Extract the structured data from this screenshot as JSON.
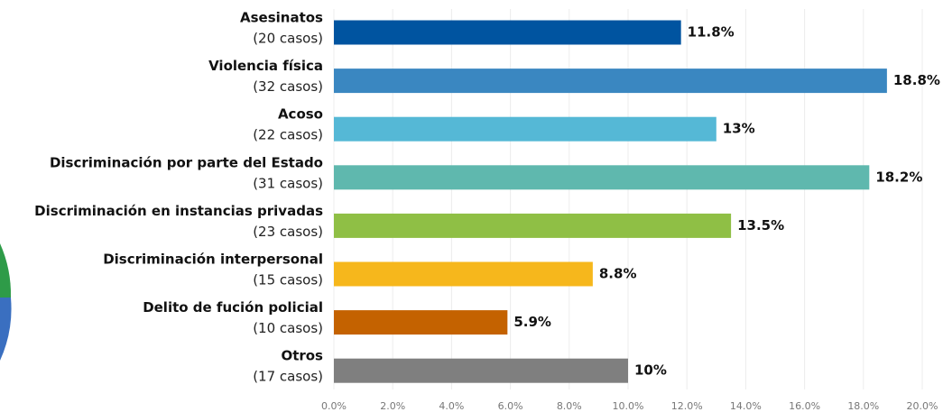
{
  "chart_data": {
    "type": "bar",
    "orientation": "horizontal",
    "categories": [
      "Asesinatos",
      "Violencia física",
      "Acoso",
      "Discriminación por parte del Estado",
      "Discriminación en instancias privadas",
      "Discriminación interpersonal",
      "Delito de fución policial",
      "Otros"
    ],
    "case_labels": [
      "(20 casos)",
      "(32 casos)",
      "(22 casos)",
      "(31 casos)",
      "(23 casos)",
      "(15 casos)",
      "(10 casos)",
      "(17 casos)"
    ],
    "values": [
      11.8,
      18.8,
      13,
      18.2,
      13.5,
      8.8,
      5.9,
      10
    ],
    "value_labels": [
      "11.8%",
      "18.8%",
      "13%",
      "18.2%",
      "13.5%",
      "8.8%",
      "5.9%",
      "10%"
    ],
    "colors": [
      "#0054a0",
      "#3a87c1",
      "#55b8d6",
      "#5fb8ae",
      "#8fbf45",
      "#f6b71c",
      "#c46200",
      "#7f7f7f"
    ],
    "xlim": [
      0,
      20
    ],
    "xticks": [
      {
        "value": 0,
        "label": "0.0%"
      },
      {
        "value": 2,
        "label": "2.0%"
      },
      {
        "value": 4,
        "label": "4.0%"
      },
      {
        "value": 6,
        "label": "6.0%"
      },
      {
        "value": 8,
        "label": "8.0%"
      },
      {
        "value": 10,
        "label": "10.0%"
      },
      {
        "value": 12,
        "label": "12.0%"
      },
      {
        "value": 14,
        "label": "14.0%"
      },
      {
        "value": 16,
        "label": "16.0%"
      },
      {
        "value": 18,
        "label": "18.0%"
      },
      {
        "value": 20,
        "label": "20.0%"
      }
    ],
    "grid": true
  }
}
